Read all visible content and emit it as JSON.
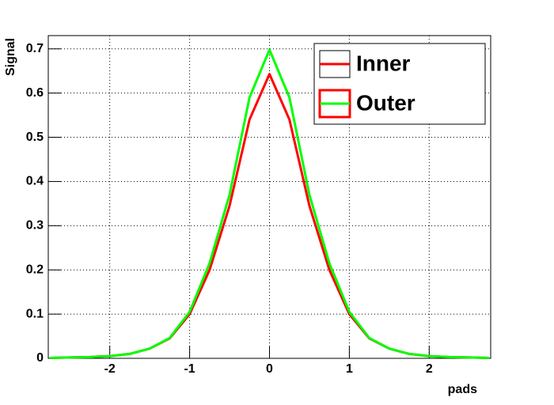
{
  "chart_data": {
    "type": "line",
    "x": [
      -2.75,
      -2.5,
      -2.25,
      -2,
      -1.75,
      -1.5,
      -1.25,
      -1,
      -0.75,
      -0.5,
      -0.25,
      0,
      0.25,
      0.5,
      0.75,
      1,
      1.25,
      1.5,
      1.75,
      2,
      2.25,
      2.5,
      2.75
    ],
    "series": [
      {
        "name": "Inner",
        "color": "#ff0000",
        "values": [
          0.001,
          0.002,
          0.003,
          0.005,
          0.01,
          0.022,
          0.045,
          0.1,
          0.2,
          0.345,
          0.54,
          0.643,
          0.54,
          0.345,
          0.2,
          0.1,
          0.045,
          0.022,
          0.01,
          0.005,
          0.003,
          0.002,
          0.001
        ]
      },
      {
        "name": "Outer",
        "color": "#00ff00",
        "values": [
          0.001,
          0.002,
          0.003,
          0.005,
          0.01,
          0.022,
          0.046,
          0.105,
          0.215,
          0.37,
          0.59,
          0.698,
          0.59,
          0.37,
          0.215,
          0.105,
          0.046,
          0.022,
          0.01,
          0.005,
          0.003,
          0.002,
          0.001
        ]
      }
    ],
    "x_label": "pads",
    "y_label": "Signal",
    "xlim": [
      -2.77,
      2.77
    ],
    "ylim": [
      0,
      0.73
    ],
    "xticks": [
      -2,
      -1,
      0,
      1,
      2
    ],
    "yticks": [
      0,
      0.1,
      0.2,
      0.3,
      0.4,
      0.5,
      0.6,
      0.7
    ],
    "grid": true,
    "legend": "upper right"
  }
}
